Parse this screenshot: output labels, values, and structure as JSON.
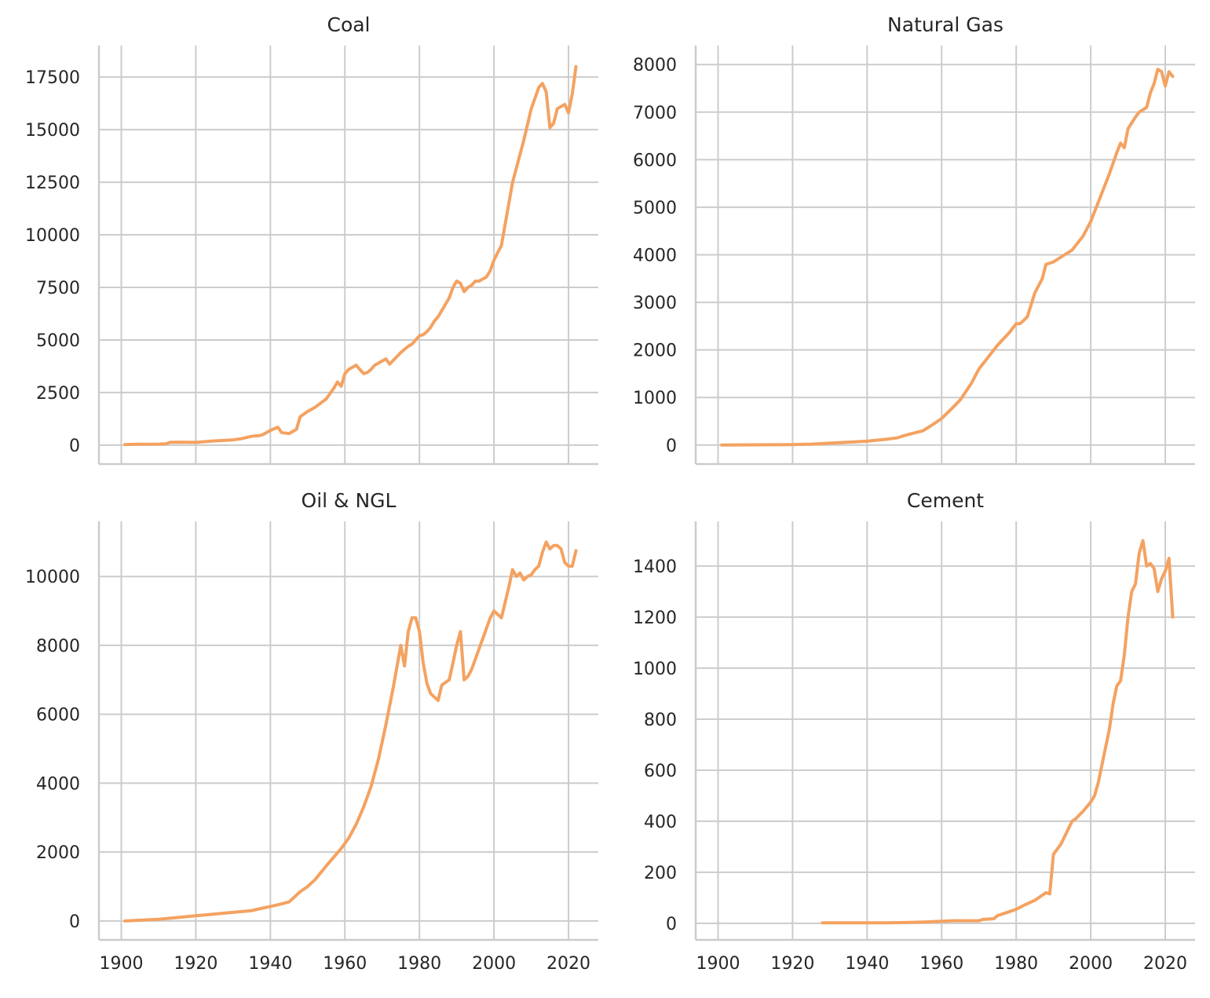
{
  "style": {
    "line_color": "#f4a261",
    "grid_color": "#cccccc",
    "background": "#ffffff"
  },
  "chart_data": [
    {
      "type": "line",
      "title": "Coal",
      "xlabel": "",
      "ylabel": "",
      "grid": true,
      "xlim": [
        1894,
        2028
      ],
      "ylim": [
        -900,
        19000
      ],
      "xticks": [
        1900,
        1920,
        1940,
        1960,
        1980,
        2000,
        2020
      ],
      "yticks": [
        0,
        2500,
        5000,
        7500,
        10000,
        12500,
        15000,
        17500
      ],
      "show_xtick_labels": false,
      "series": [
        {
          "x": [
            1901,
            1905,
            1910,
            1912,
            1913,
            1915,
            1920,
            1925,
            1930,
            1932,
            1935,
            1937,
            1938,
            1940,
            1942,
            1943,
            1945,
            1947,
            1948,
            1950,
            1952,
            1955,
            1957,
            1958,
            1959,
            1960,
            1961,
            1963,
            1965,
            1966,
            1967,
            1968,
            1970,
            1971,
            1972,
            1975,
            1977,
            1978,
            1979,
            1980,
            1981,
            1982,
            1983,
            1984,
            1985,
            1988,
            1989,
            1990,
            1991,
            1992,
            1993,
            1994,
            1995,
            1996,
            1997,
            1998,
            1999,
            2000,
            2002,
            2005,
            2008,
            2010,
            2012,
            2013,
            2014,
            2015,
            2016,
            2017,
            2019,
            2020,
            2021,
            2022
          ],
          "y": [
            30,
            40,
            50,
            60,
            130,
            140,
            130,
            200,
            250,
            300,
            420,
            450,
            500,
            700,
            850,
            600,
            550,
            750,
            1350,
            1600,
            1800,
            2200,
            2700,
            3000,
            2800,
            3400,
            3600,
            3800,
            3400,
            3450,
            3600,
            3800,
            4000,
            4100,
            3850,
            4400,
            4700,
            4800,
            5000,
            5200,
            5250,
            5400,
            5600,
            5900,
            6100,
            7000,
            7500,
            7800,
            7700,
            7300,
            7500,
            7600,
            7800,
            7800,
            7900,
            8000,
            8300,
            8800,
            9500,
            12500,
            14500,
            16000,
            17000,
            17200,
            16800,
            15100,
            15300,
            16000,
            16200,
            15800,
            16700,
            18000
          ]
        }
      ]
    },
    {
      "type": "line",
      "title": "Natural Gas",
      "xlabel": "",
      "ylabel": "",
      "grid": true,
      "xlim": [
        1894,
        2028
      ],
      "ylim": [
        -400,
        8400
      ],
      "xticks": [
        1900,
        1920,
        1940,
        1960,
        1980,
        2000,
        2020
      ],
      "yticks": [
        0,
        1000,
        2000,
        3000,
        4000,
        5000,
        6000,
        7000,
        8000
      ],
      "show_xtick_labels": false,
      "series": [
        {
          "x": [
            1901,
            1910,
            1920,
            1925,
            1930,
            1935,
            1940,
            1945,
            1948,
            1950,
            1952,
            1955,
            1958,
            1960,
            1963,
            1965,
            1968,
            1970,
            1972,
            1975,
            1978,
            1979,
            1980,
            1981,
            1982,
            1983,
            1984,
            1985,
            1987,
            1988,
            1990,
            1992,
            1995,
            1997,
            1998,
            2000,
            2002,
            2005,
            2007,
            2008,
            2009,
            2010,
            2012,
            2013,
            2014,
            2015,
            2016,
            2017,
            2018,
            2019,
            2020,
            2021,
            2022
          ],
          "y": [
            0,
            5,
            10,
            20,
            40,
            60,
            80,
            120,
            150,
            200,
            240,
            300,
            450,
            560,
            790,
            950,
            1300,
            1600,
            1800,
            2100,
            2350,
            2450,
            2550,
            2550,
            2620,
            2700,
            2950,
            3200,
            3500,
            3800,
            3850,
            3950,
            4100,
            4300,
            4400,
            4700,
            5100,
            5700,
            6150,
            6350,
            6250,
            6650,
            6900,
            7000,
            7050,
            7100,
            7400,
            7600,
            7900,
            7850,
            7550,
            7850,
            7750
          ]
        }
      ]
    },
    {
      "type": "line",
      "title": "Oil & NGL",
      "xlabel": "",
      "ylabel": "",
      "grid": true,
      "xlim": [
        1894,
        2028
      ],
      "ylim": [
        -550,
        11600
      ],
      "xticks": [
        1900,
        1920,
        1940,
        1960,
        1980,
        2000,
        2020
      ],
      "yticks": [
        0,
        2000,
        4000,
        6000,
        8000,
        10000
      ],
      "show_xtick_labels": true,
      "series": [
        {
          "x": [
            1901,
            1910,
            1915,
            1920,
            1925,
            1930,
            1935,
            1937,
            1940,
            1942,
            1945,
            1948,
            1950,
            1952,
            1955,
            1957,
            1959,
            1961,
            1963,
            1965,
            1967,
            1969,
            1971,
            1973,
            1974,
            1975,
            1976,
            1977,
            1978,
            1979,
            1980,
            1981,
            1982,
            1983,
            1984,
            1985,
            1986,
            1988,
            1989,
            1990,
            1991,
            1992,
            1993,
            1994,
            1995,
            1996,
            1997,
            1998,
            1999,
            2000,
            2001,
            2002,
            2004,
            2005,
            2006,
            2007,
            2008,
            2009,
            2010,
            2011,
            2012,
            2013,
            2014,
            2015,
            2016,
            2017,
            2018,
            2019,
            2020,
            2021,
            2022
          ],
          "y": [
            0,
            50,
            100,
            150,
            200,
            250,
            300,
            350,
            420,
            470,
            550,
            850,
            1000,
            1200,
            1600,
            1850,
            2100,
            2400,
            2800,
            3300,
            3900,
            4700,
            5700,
            6800,
            7400,
            8000,
            7400,
            8400,
            8800,
            8800,
            8400,
            7500,
            6900,
            6600,
            6500,
            6400,
            6850,
            7000,
            7500,
            8000,
            8400,
            7000,
            7100,
            7300,
            7600,
            7900,
            8200,
            8500,
            8800,
            9000,
            8900,
            8800,
            9700,
            10200,
            10000,
            10100,
            9900,
            10000,
            10050,
            10200,
            10300,
            10700,
            11000,
            10800,
            10900,
            10900,
            10800,
            10400,
            10300,
            10300,
            10750
          ]
        }
      ]
    },
    {
      "type": "line",
      "title": "Cement",
      "xlabel": "",
      "ylabel": "",
      "grid": true,
      "xlim": [
        1894,
        2028
      ],
      "ylim": [
        -65,
        1575
      ],
      "xticks": [
        1900,
        1920,
        1940,
        1960,
        1980,
        2000,
        2020
      ],
      "yticks": [
        0,
        200,
        400,
        600,
        800,
        1000,
        1200,
        1400
      ],
      "show_xtick_labels": true,
      "series": [
        {
          "x": [
            1928,
            1935,
            1945,
            1950,
            1955,
            1960,
            1963,
            1966,
            1970,
            1971,
            1974,
            1975,
            1978,
            1980,
            1982,
            1985,
            1988,
            1989,
            1990,
            1992,
            1993,
            1994,
            1995,
            1996,
            1998,
            2000,
            2001,
            2002,
            2003,
            2004,
            2005,
            2006,
            2007,
            2008,
            2009,
            2010,
            2011,
            2012,
            2013,
            2014,
            2015,
            2016,
            2017,
            2018,
            2019,
            2020,
            2021,
            2022
          ],
          "y": [
            2,
            2,
            2,
            3,
            5,
            8,
            10,
            10,
            10,
            15,
            18,
            30,
            45,
            55,
            70,
            90,
            120,
            115,
            270,
            310,
            340,
            370,
            400,
            410,
            440,
            475,
            500,
            550,
            620,
            690,
            760,
            860,
            930,
            950,
            1050,
            1200,
            1300,
            1330,
            1450,
            1500,
            1400,
            1410,
            1390,
            1300,
            1350,
            1380,
            1430,
            1200
          ]
        }
      ]
    }
  ]
}
